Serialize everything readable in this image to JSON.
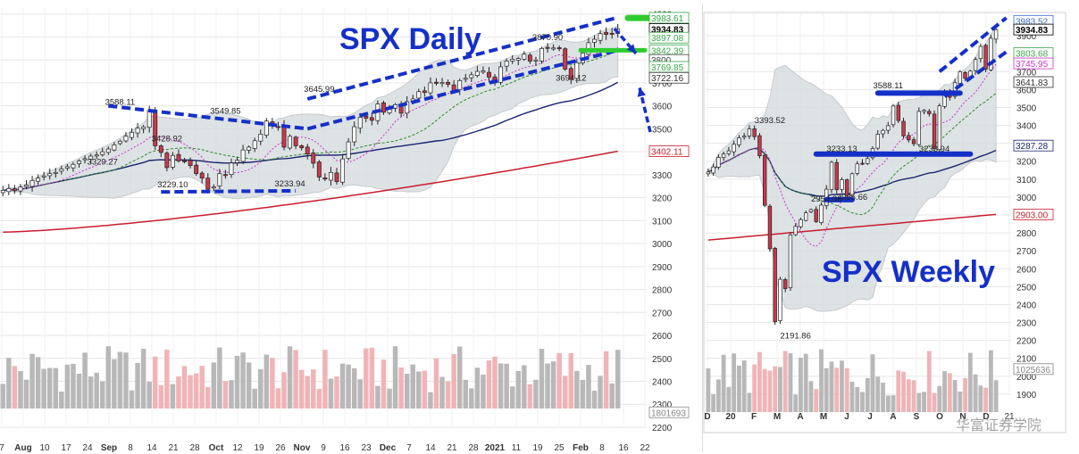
{
  "chart_data": [
    {
      "type": "candlestick",
      "title": "SPX Daily",
      "title_color": "#1530c8",
      "y_ticks": [
        2200,
        2300,
        2400,
        2500,
        2600,
        2700,
        2800,
        2900,
        3000,
        3100,
        3200,
        3300,
        3400,
        3500,
        3600,
        3700,
        3800,
        3900,
        4000
      ],
      "y_top_label": "10",
      "ylim": [
        2130,
        4030
      ],
      "x_labels": [
        "7",
        "Aug",
        "10",
        "17",
        "24",
        "Sep",
        "8",
        "14",
        "21",
        "28",
        "Oct",
        "12",
        "19",
        "26",
        "Nov",
        "9",
        "16",
        "23",
        "Dec",
        "7",
        "14",
        "21",
        "28",
        "2021",
        "11",
        "19",
        "25",
        "Feb",
        "8",
        "16",
        "22"
      ],
      "right_labels": [
        {
          "text": "3983.61",
          "y": 3983.61,
          "color": "#3aa64a"
        },
        {
          "text": "3934.83",
          "y": 3934.83,
          "color": "#000000",
          "bold": true
        },
        {
          "text": "3897.08",
          "y": 3897.08,
          "color": "#3aa64a"
        },
        {
          "text": "3842.39",
          "y": 3842.39,
          "color": "#3aa64a"
        },
        {
          "text": "3800",
          "y": 3800,
          "color": "#444444"
        },
        {
          "text": "3769.85",
          "y": 3769.85,
          "color": "#3aa64a"
        },
        {
          "text": "3722.16",
          "y": 3722.16,
          "color": "#333333"
        },
        {
          "text": "3402.11",
          "y": 3402.11,
          "color": "#c81e2c"
        },
        {
          "text": "1801693",
          "y": 2265,
          "color": "#888888"
        }
      ],
      "annotations": [
        {
          "text": "3588.11",
          "x": 20,
          "y": 3588.11
        },
        {
          "text": "3428.92",
          "x": 28,
          "y": 3428.92
        },
        {
          "text": "3329.27",
          "x": 17,
          "y": 3329.27
        },
        {
          "text": "3229.10",
          "x": 29,
          "y": 3229.1
        },
        {
          "text": "3549.85",
          "x": 38,
          "y": 3549.85
        },
        {
          "text": "3233.94",
          "x": 49,
          "y": 3233.94
        },
        {
          "text": "3645.99",
          "x": 54,
          "y": 3645.99
        },
        {
          "text": "3870.90",
          "x": 93,
          "y": 3870.9
        },
        {
          "text": "3694.12",
          "x": 97,
          "y": 3694.12
        }
      ],
      "series": [
        {
          "name": "Price",
          "kind": "candles",
          "color_up": "#ffffff",
          "color_down": "#c8384a",
          "closes": [
            3232,
            3240,
            3230,
            3246,
            3255,
            3275,
            3285,
            3295,
            3305,
            3310,
            3325,
            3335,
            3345,
            3360,
            3370,
            3381,
            3386,
            3400,
            3412,
            3430,
            3446,
            3468,
            3485,
            3503,
            3508,
            3580,
            3426,
            3397,
            3331,
            3384,
            3360,
            3358,
            3340,
            3305,
            3285,
            3237,
            3247,
            3305,
            3298,
            3351,
            3363,
            3408,
            3420,
            3448,
            3477,
            3534,
            3512,
            3510,
            3420,
            3467,
            3426,
            3417,
            3390,
            3350,
            3290,
            3281,
            3310,
            3270,
            3369,
            3443,
            3509,
            3550,
            3546,
            3537,
            3608,
            3572,
            3585,
            3605,
            3568,
            3618,
            3630,
            3662,
            3658,
            3700,
            3698,
            3702,
            3694,
            3665,
            3710,
            3720,
            3735,
            3750,
            3752,
            3725,
            3700,
            3770,
            3795,
            3803,
            3806,
            3825,
            3795,
            3800,
            3850,
            3851,
            3852,
            3849,
            3760,
            3715,
            3788,
            3830,
            3875,
            3890,
            3915,
            3911,
            3916,
            3935
          ]
        },
        {
          "name": "MA20",
          "kind": "line",
          "color": "#2a8a2a"
        },
        {
          "name": "MA10",
          "kind": "line",
          "color": "#cc33cc"
        },
        {
          "name": "MA50",
          "kind": "line",
          "color": "#1a2470"
        },
        {
          "name": "MA200",
          "kind": "line",
          "color": "#c81e2c"
        },
        {
          "name": "Volume",
          "kind": "bars",
          "color_up": "#b8b8b8",
          "color_down": "#f0b4b6"
        }
      ]
    },
    {
      "type": "candlestick",
      "title": "SPX Weekly",
      "title_color": "#1530c8",
      "y_ticks": [
        1900,
        2000,
        2100,
        2200,
        2300,
        2400,
        2500,
        2600,
        2700,
        2800,
        2900,
        3000,
        3100,
        3200,
        3300,
        3400,
        3500,
        3600,
        3700,
        3800,
        3900
      ],
      "ylim": [
        1800,
        4030
      ],
      "x_labels": [
        "D",
        "20",
        "F",
        "M",
        "A",
        "M",
        "J",
        "J",
        "A",
        "S",
        "O",
        "N",
        "D",
        "21"
      ],
      "right_labels": [
        {
          "text": "3983.52",
          "y": 3983.52,
          "color": "#3a6cc8"
        },
        {
          "text": "3934.83",
          "y": 3934.83,
          "color": "#000000",
          "bold": true
        },
        {
          "text": "3803.68",
          "y": 3803.68,
          "color": "#3aa64a"
        },
        {
          "text": "3745.95",
          "y": 3745.95,
          "color": "#cc33cc"
        },
        {
          "text": "3641.83",
          "y": 3641.83,
          "color": "#333333"
        },
        {
          "text": "3287.28",
          "y": 3287.28,
          "color": "#1a2470"
        },
        {
          "text": "2903.00",
          "y": 2903.0,
          "color": "#c81e2c"
        },
        {
          "text": "1025636",
          "y": 2040,
          "color": "#888888"
        }
      ],
      "annotations": [
        {
          "text": "3393.52",
          "x": 12,
          "y": 3393.52
        },
        {
          "text": "3233.13",
          "x": 26,
          "y": 3233.13
        },
        {
          "text": "2954.86",
          "x": 23,
          "y": 2954.86
        },
        {
          "text": "2965.66",
          "x": 28,
          "y": 2965.66
        },
        {
          "text": "3588.11",
          "x": 35,
          "y": 3588.11
        },
        {
          "text": "3233.94",
          "x": 44,
          "y": 3233.94
        },
        {
          "text": "2191.86",
          "x": 17,
          "y": 2191.86
        }
      ],
      "series": [
        {
          "name": "Price",
          "kind": "candles",
          "color_up": "#ffffff",
          "color_down": "#c8384a",
          "closes": [
            3140,
            3168,
            3221,
            3240,
            3258,
            3295,
            3330,
            3340,
            3380,
            3337,
            3230,
            2954,
            2711,
            2304,
            2541,
            2489,
            2789,
            2837,
            2874,
            2912,
            2930,
            2863,
            2955,
            3044,
            3194,
            3041,
            3097,
            3009,
            3130,
            3185,
            3185,
            3215,
            3271,
            3351,
            3372,
            3398,
            3508,
            3427,
            3341,
            3319,
            3298,
            3478,
            3484,
            3465,
            3270,
            3509,
            3585,
            3557,
            3638,
            3699,
            3663,
            3703,
            3768,
            3841,
            3714,
            3886,
            3934
          ]
        },
        {
          "name": "MA20",
          "kind": "line",
          "color": "#2a8a2a"
        },
        {
          "name": "MA10",
          "kind": "line",
          "color": "#cc33cc"
        },
        {
          "name": "MA50",
          "kind": "line",
          "color": "#1a2470"
        },
        {
          "name": "MA200",
          "kind": "line",
          "color": "#c81e2c"
        },
        {
          "name": "Volume",
          "kind": "bars",
          "color_up": "#b8b8b8",
          "color_down": "#f0b4b6"
        }
      ]
    }
  ],
  "watermark": "华富证券学院"
}
